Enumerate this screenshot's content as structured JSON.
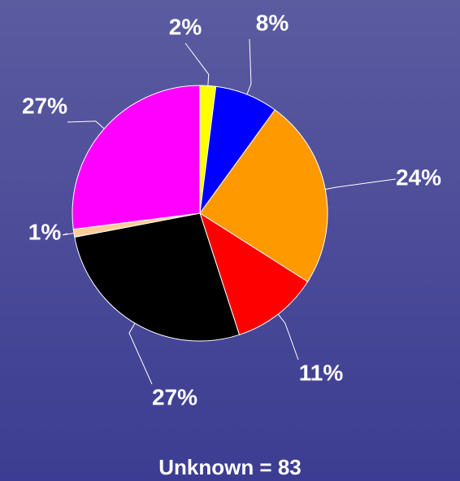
{
  "chart_data": {
    "type": "pie",
    "categories": [
      null,
      null,
      null,
      null,
      null,
      null,
      null
    ],
    "values": [
      2,
      8,
      24,
      11,
      27,
      1,
      27
    ],
    "value_labels": [
      "2%",
      "8%",
      "24%",
      "11%",
      "27%",
      "1%",
      "27%"
    ],
    "colors": [
      "#ffff00",
      "#0000ff",
      "#ff9900",
      "#ff0000",
      "#000000",
      "#ffcc99",
      "#ff00ff"
    ],
    "note": "Unknown = 83"
  }
}
